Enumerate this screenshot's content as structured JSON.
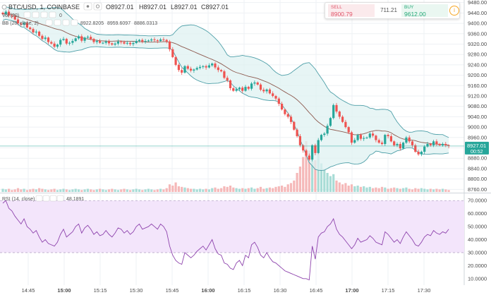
{
  "header": {
    "symbol": "BTC/USD, 1, COINBASE",
    "O": "O8927.01",
    "H": "H8927.01",
    "L": "L8927.01",
    "C": "C8927.01",
    "vol_label": "Vol (20)",
    "vol_value": "0",
    "bb_label": "BB (20, close, 2)",
    "bb_basis": "8922.8205",
    "bb_upper": "8959.6097",
    "bb_lower": "8886.0313"
  },
  "trade": {
    "sell_label": "SELL",
    "sell_price": "8900.79",
    "spread": "711.21",
    "buy_label": "BUY",
    "buy_price": "9612.00"
  },
  "rsi": {
    "label": "RSI (14, close)",
    "value": "48.1891"
  },
  "price_axis": {
    "ticks": [
      "9480.00",
      "9440.00",
      "9400.00",
      "9360.00",
      "9320.00",
      "9280.00",
      "9240.00",
      "9200.00",
      "9160.00",
      "9120.00",
      "9080.00",
      "9040.00",
      "9000.00",
      "8960.00",
      "8920.00",
      "8880.00",
      "8840.00",
      "8800.00",
      "8760.00"
    ],
    "last_price": "8927.01",
    "countdown": "00:52"
  },
  "rsi_axis": {
    "ticks": [
      "70.0000",
      "60.0000",
      "50.0000",
      "40.0000",
      "30.0000",
      "20.0000",
      "10.0000"
    ]
  },
  "time_axis": {
    "ticks": [
      "14:45",
      "15:00",
      "15:15",
      "15:30",
      "15:45",
      "16:00",
      "16:15",
      "16:30",
      "16:45",
      "17:00",
      "17:15",
      "17:30"
    ]
  },
  "colors": {
    "up": "#26a69a",
    "down": "#ef5350",
    "band": "#4e9fa8",
    "basis": "#8d5a4f",
    "rsi": "#8e44ad"
  },
  "chart_data": {
    "type": "candlestick",
    "ylim": [
      8750,
      9490
    ],
    "rsi_ylim": [
      5,
      75
    ],
    "closes": [
      9435,
      9445,
      9430,
      9428,
      9415,
      9400,
      9395,
      9402,
      9384,
      9378,
      9365,
      9368,
      9352,
      9340,
      9345,
      9328,
      9322,
      9310,
      9318,
      9336,
      9340,
      9322,
      9325,
      9332,
      9342,
      9350,
      9333,
      9345,
      9348,
      9340,
      9328,
      9332,
      9325,
      9325,
      9330,
      9323,
      9318,
      9322,
      9330,
      9328,
      9322,
      9325,
      9320,
      9324,
      9332,
      9336,
      9330,
      9332,
      9334,
      9338,
      9335,
      9332,
      9338,
      9336,
      9330,
      9300,
      9270,
      9240,
      9220,
      9210,
      9235,
      9225,
      9218,
      9222,
      9228,
      9232,
      9235,
      9230,
      9238,
      9245,
      9230,
      9220,
      9215,
      9190,
      9180,
      9150,
      9140,
      9146,
      9152,
      9140,
      9155,
      9148,
      9168,
      9172,
      9164,
      9144,
      9138,
      9145,
      9130,
      9120,
      9110,
      9090,
      9068,
      9050,
      9040,
      9020,
      8990,
      8965,
      8930,
      8910,
      8890,
      8875,
      8930,
      8900,
      8950,
      8970,
      8975,
      9005,
      9035,
      9085,
      9060,
      9040,
      9020,
      9000,
      8980,
      8940,
      8950,
      8970,
      8955,
      8958,
      8960,
      8975,
      8967,
      8950,
      8940,
      8935,
      8970,
      8965,
      8945,
      8930,
      8935,
      8918,
      8940,
      8960,
      8945,
      8930,
      8905,
      8895,
      8905,
      8925,
      8935,
      8930,
      8945,
      8935,
      8930,
      8935,
      8930,
      8927
    ],
    "volumes": [
      0.05,
      0.04,
      0.05,
      0.03,
      0.04,
      0.06,
      0.04,
      0.05,
      0.03,
      0.04,
      0.05,
      0.04,
      0.06,
      0.05,
      0.04,
      0.03,
      0.04,
      0.05,
      0.03,
      0.04,
      0.05,
      0.04,
      0.03,
      0.04,
      0.05,
      0.04,
      0.03,
      0.04,
      0.05,
      0.04,
      0.03,
      0.04,
      0.05,
      0.04,
      0.03,
      0.04,
      0.05,
      0.04,
      0.03,
      0.04,
      0.05,
      0.04,
      0.03,
      0.04,
      0.05,
      0.04,
      0.03,
      0.04,
      0.05,
      0.04,
      0.03,
      0.04,
      0.05,
      0.04,
      0.06,
      0.12,
      0.1,
      0.15,
      0.09,
      0.08,
      0.07,
      0.06,
      0.05,
      0.05,
      0.04,
      0.05,
      0.04,
      0.05,
      0.04,
      0.06,
      0.07,
      0.05,
      0.06,
      0.09,
      0.08,
      0.1,
      0.07,
      0.06,
      0.05,
      0.06,
      0.05,
      0.06,
      0.07,
      0.05,
      0.06,
      0.08,
      0.05,
      0.06,
      0.07,
      0.06,
      0.08,
      0.09,
      0.1,
      0.08,
      0.12,
      0.14,
      0.18,
      0.3,
      0.4,
      0.55,
      0.8,
      0.65,
      0.7,
      0.5,
      0.6,
      0.45,
      0.35,
      0.3,
      0.25,
      0.28,
      0.18,
      0.15,
      0.12,
      0.14,
      0.1,
      0.12,
      0.09,
      0.1,
      0.08,
      0.09,
      0.07,
      0.08,
      0.06,
      0.07,
      0.06,
      0.08,
      0.07,
      0.05,
      0.06,
      0.07,
      0.06,
      0.05,
      0.06,
      0.07,
      0.05,
      0.04,
      0.06,
      0.05,
      0.06,
      0.05,
      0.04,
      0.05,
      0.04,
      0.05,
      0.04,
      0.05,
      0.04,
      0.03
    ],
    "rsi": [
      68,
      70,
      64,
      62,
      58,
      55,
      52,
      56,
      50,
      48,
      45,
      47,
      42,
      38,
      40,
      37,
      36,
      35,
      38,
      44,
      48,
      42,
      44,
      46,
      50,
      52,
      45,
      49,
      51,
      48,
      44,
      46,
      43,
      44,
      47,
      44,
      42,
      45,
      49,
      48,
      45,
      47,
      44,
      46,
      50,
      52,
      48,
      49,
      50,
      52,
      50,
      48,
      52,
      50,
      46,
      35,
      28,
      24,
      22,
      21,
      30,
      28,
      26,
      28,
      31,
      33,
      35,
      32,
      36,
      40,
      33,
      29,
      28,
      22,
      21,
      18,
      17,
      22,
      24,
      20,
      28,
      26,
      36,
      38,
      34,
      28,
      26,
      30,
      26,
      23,
      22,
      20,
      18,
      16,
      15,
      14,
      13,
      12,
      11,
      10,
      10,
      9,
      35,
      25,
      42,
      45,
      46,
      50,
      52,
      56,
      48,
      44,
      42,
      39,
      36,
      33,
      36,
      41,
      38,
      39,
      40,
      43,
      41,
      38,
      37,
      36,
      46,
      44,
      41,
      38,
      40,
      37,
      42,
      46,
      43,
      40,
      36,
      35,
      38,
      42,
      44,
      43,
      47,
      45,
      44,
      46,
      45,
      48
    ]
  }
}
